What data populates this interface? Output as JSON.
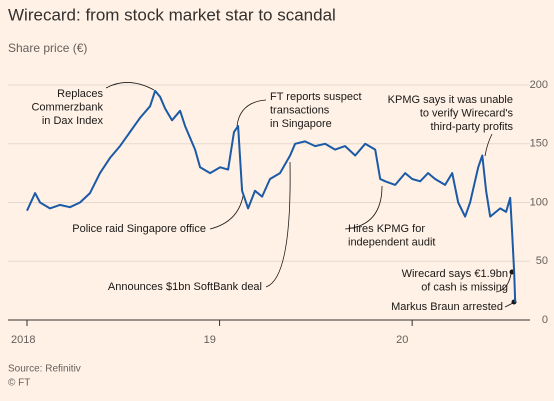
{
  "chart_data": {
    "type": "line",
    "title": "Wirecard: from stock market star to scandal",
    "subtitle": "Share price (€)",
    "source": "Source: Refinitiv",
    "credit": "© FT",
    "color": "#1a5aa6",
    "grid": true,
    "xlim": [
      2018,
      2020.56
    ],
    "xticks": [
      {
        "value": 2018,
        "label": "2018"
      },
      {
        "value": 2019,
        "label": "19"
      },
      {
        "value": 2020,
        "label": "20"
      }
    ],
    "ylim": [
      0,
      200
    ],
    "yticks": [
      0,
      50,
      100,
      150,
      200
    ],
    "x": [
      2018.0,
      2018.042,
      2018.068,
      2018.119,
      2018.171,
      2018.223,
      2018.275,
      2018.327,
      2018.379,
      2018.431,
      2018.483,
      2018.535,
      2018.587,
      2018.639,
      2018.665,
      2018.691,
      2018.717,
      2018.753,
      2018.795,
      2018.821,
      2018.873,
      2018.899,
      2018.951,
      2019.003,
      2019.044,
      2019.075,
      2019.096,
      2019.117,
      2019.148,
      2019.184,
      2019.221,
      2019.262,
      2019.314,
      2019.366,
      2019.392,
      2019.444,
      2019.496,
      2019.548,
      2019.6,
      2019.652,
      2019.704,
      2019.756,
      2019.808,
      2019.834,
      2019.86,
      2019.912,
      2019.964,
      2020.0,
      2020.042,
      2020.083,
      2020.119,
      2020.171,
      2020.208,
      2020.239,
      2020.275,
      2020.301,
      2020.343,
      2020.364,
      2020.384,
      2020.405,
      2020.457,
      2020.488,
      2020.509,
      2020.519,
      2020.53,
      2020.535
    ],
    "values": [
      93,
      108,
      100,
      95,
      98,
      96,
      100,
      108,
      125,
      138,
      148,
      160,
      172,
      182,
      195,
      190,
      180,
      170,
      178,
      165,
      145,
      130,
      125,
      130,
      128,
      160,
      165,
      110,
      95,
      110,
      105,
      120,
      125,
      140,
      150,
      152,
      148,
      150,
      145,
      148,
      140,
      150,
      145,
      120,
      118,
      115,
      125,
      120,
      118,
      125,
      120,
      115,
      125,
      100,
      88,
      100,
      130,
      140,
      110,
      88,
      95,
      92,
      104,
      75,
      40,
      15
    ],
    "annotations": [
      [
        "Replaces",
        "Commerzbank",
        "in Dax Index"
      ],
      [
        "FT reports suspect",
        "transactions",
        "in Singapore"
      ],
      [
        "KPMG says it was unable",
        "to verify Wirecard's",
        "third-party profits"
      ],
      [
        "Police raid Singapore office"
      ],
      [
        "Hires KPMG for",
        "independent audit"
      ],
      [
        "Announces $1bn SoftBank deal"
      ],
      [
        "Wirecard says €1.9bn",
        "of cash is missing"
      ],
      [
        "Markus Braun arrested"
      ]
    ]
  }
}
